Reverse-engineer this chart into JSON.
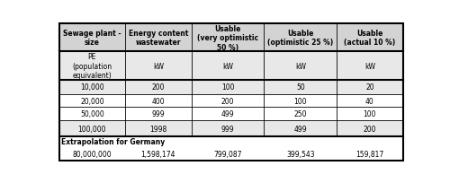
{
  "col_headers": [
    "Sewage plant -\nsize",
    "Energy content\nwastewater",
    "Usable\n(very optimistic\n50 %)",
    "Usable\n(optimistic 25 %)",
    "Usable\n(actual 10 %)"
  ],
  "sub_headers": [
    "PE\n(population\nequivalent)",
    "kW",
    "kW",
    "kW",
    "kW"
  ],
  "data_rows": [
    [
      "10,000",
      "200",
      "100",
      "50",
      "20"
    ],
    [
      "20,000",
      "400",
      "200",
      "100",
      "40"
    ],
    [
      "50,000",
      "999",
      "499",
      "250",
      "100"
    ],
    [
      "100,000",
      "1998",
      "999",
      "499",
      "200"
    ]
  ],
  "extra_label": "Extrapolation for Germany",
  "extra_row": [
    "80,000,000",
    "1,598,174",
    "799,087",
    "399,543",
    "159,817"
  ],
  "header_bg": "#d3d3d3",
  "subheader_bg": "#e8e8e8",
  "alt_row_bg": "#e8e8e8",
  "white_bg": "#ffffff",
  "font_size": 5.5,
  "header_font_size": 5.5
}
